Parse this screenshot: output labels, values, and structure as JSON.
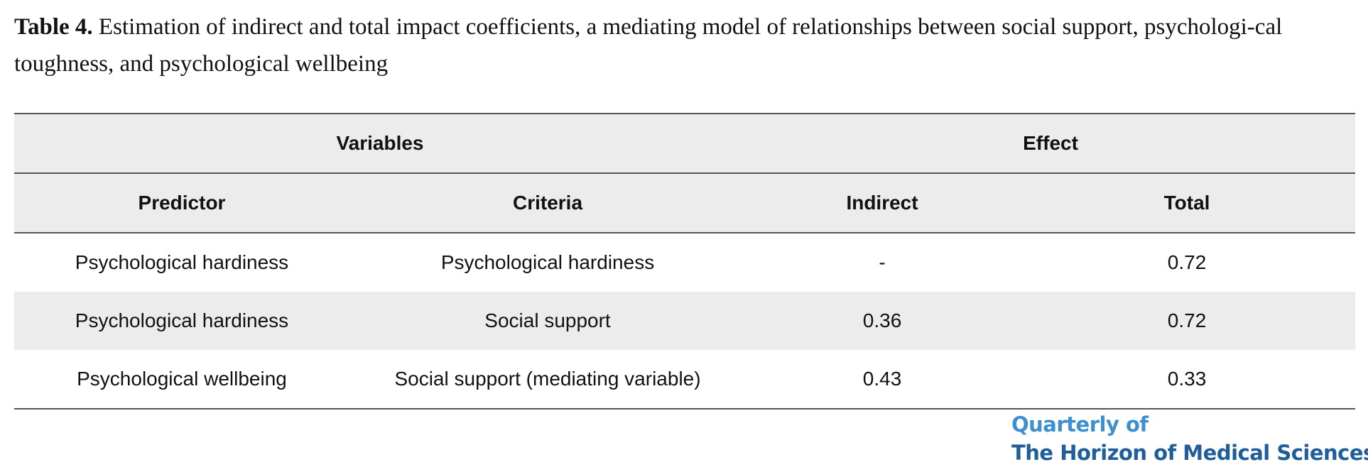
{
  "caption": {
    "label": "Table 4.",
    "text": " Estimation of indirect and total impact coefficients, a mediating model of relationships between social support, psychologi-cal toughness, and psychological wellbeing"
  },
  "table": {
    "group_headers": [
      "Variables",
      "Effect"
    ],
    "columns": [
      "Predictor",
      "Criteria",
      "Indirect",
      "Total"
    ],
    "rows": [
      [
        "Psychological hardiness",
        "Psychological hardiness",
        "-",
        "0.72"
      ],
      [
        "Psychological hardiness",
        "Social support",
        "0.36",
        "0.72"
      ],
      [
        "Psychological wellbeing",
        "Social support (mediating variable)",
        "0.43",
        "0.33"
      ]
    ]
  },
  "logo": {
    "line1": "Quarterly of",
    "line2": "The Horizon of Medical Sciences"
  },
  "colors": {
    "header_bg": "#ececec",
    "logo_blue": "#3e8fd0",
    "logo_dark_blue": "#1f5e9a"
  }
}
